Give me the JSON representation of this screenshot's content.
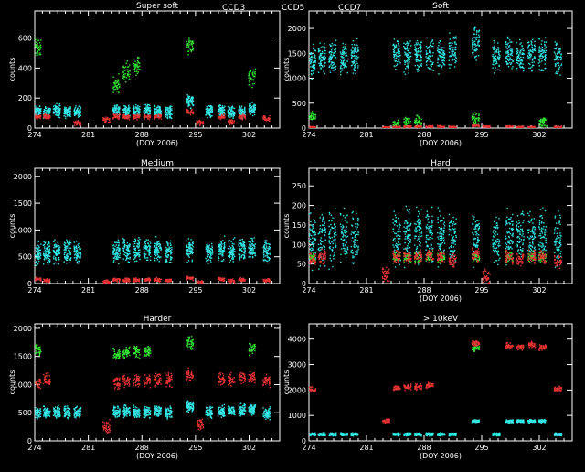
{
  "legend": [
    {
      "name": "CCD3",
      "color": "#33e6e6"
    },
    {
      "name": "CCD5",
      "color": "#33e633"
    },
    {
      "name": "CCD7",
      "color": "#e63333"
    }
  ],
  "chart_data": [
    {
      "type": "scatter",
      "title": "Super soft",
      "xlabel": "(DOY 2006)",
      "ylabel": "counts",
      "xlim": [
        274,
        306
      ],
      "ylim": [
        0,
        780
      ],
      "xticks": [
        274,
        281,
        288,
        295,
        302
      ],
      "yticks": [
        0,
        200,
        400,
        600
      ],
      "clusters": [
        274.3,
        275.5,
        276.8,
        278.2,
        279.5,
        283.3,
        284.6,
        285.9,
        287.2,
        288.6,
        290.0,
        291.4,
        292.7,
        294.2,
        295.5,
        296.7,
        298.3,
        299.6,
        301.0,
        302.3,
        304.2
      ],
      "series": [
        {
          "name": "CCD3",
          "color": "#33e6e6",
          "levels": [
            120,
            110,
            120,
            115,
            110,
            0,
            120,
            115,
            120,
            120,
            115,
            110,
            0,
            180,
            0,
            110,
            120,
            110,
            110,
            130,
            0
          ],
          "spread": 70
        },
        {
          "name": "CCD5",
          "color": "#33e633",
          "levels": [
            540,
            0,
            0,
            0,
            0,
            0,
            300,
            380,
            420,
            0,
            0,
            0,
            0,
            560,
            0,
            0,
            0,
            0,
            0,
            340,
            0
          ],
          "spread": 110
        },
        {
          "name": "CCD7",
          "color": "#e63333",
          "levels": [
            80,
            80,
            0,
            0,
            40,
            60,
            80,
            80,
            80,
            80,
            80,
            0,
            0,
            110,
            40,
            0,
            80,
            40,
            80,
            0,
            70
          ],
          "spread": 30
        }
      ]
    },
    {
      "type": "scatter",
      "title": "Soft",
      "xlabel": "(DOY 2006)",
      "ylabel": "counts",
      "xlim": [
        274,
        306
      ],
      "ylim": [
        0,
        2350
      ],
      "xticks": [
        274,
        281,
        288,
        295,
        302
      ],
      "yticks": [
        0,
        500,
        1000,
        1500,
        2000
      ],
      "clusters": [
        274.3,
        275.5,
        276.8,
        278.2,
        279.5,
        283.3,
        284.6,
        285.9,
        287.2,
        288.6,
        290.0,
        291.4,
        292.7,
        294.2,
        295.5,
        296.7,
        298.3,
        299.6,
        301.0,
        302.3,
        304.2
      ],
      "series": [
        {
          "name": "CCD3",
          "color": "#33e6e6",
          "levels": [
            1350,
            1400,
            1450,
            1400,
            1450,
            0,
            1500,
            1450,
            1450,
            1500,
            1450,
            1550,
            0,
            1750,
            0,
            1450,
            1500,
            1450,
            1500,
            1500,
            1400
          ],
          "spread": 550
        },
        {
          "name": "CCD5",
          "color": "#33e633",
          "levels": [
            250,
            0,
            0,
            0,
            0,
            0,
            100,
            120,
            150,
            0,
            0,
            0,
            0,
            200,
            0,
            0,
            0,
            0,
            0,
            120,
            0
          ],
          "spread": 200
        },
        {
          "name": "CCD7",
          "color": "#e63333",
          "levels": [
            30,
            0,
            0,
            0,
            0,
            20,
            30,
            40,
            40,
            40,
            40,
            30,
            0,
            60,
            40,
            0,
            40,
            30,
            30,
            0,
            30
          ],
          "spread": 40
        }
      ]
    },
    {
      "type": "scatter",
      "title": "Medium",
      "xlabel": "",
      "ylabel": "counts",
      "xlim": [
        274,
        306
      ],
      "ylim": [
        0,
        2150
      ],
      "xticks": [
        274,
        281,
        288,
        295,
        302
      ],
      "yticks": [
        0,
        500,
        1000,
        1500,
        2000
      ],
      "clusters": [
        274.3,
        275.5,
        276.8,
        278.2,
        279.5,
        283.3,
        284.6,
        285.9,
        287.2,
        288.6,
        290.0,
        291.4,
        292.7,
        294.2,
        295.5,
        296.7,
        298.3,
        299.6,
        301.0,
        302.3,
        304.2
      ],
      "series": [
        {
          "name": "CCD3",
          "color": "#33e6e6",
          "levels": [
            550,
            580,
            600,
            620,
            600,
            0,
            620,
            650,
            640,
            630,
            650,
            600,
            0,
            650,
            0,
            600,
            650,
            620,
            650,
            650,
            620
          ],
          "spread": 360
        },
        {
          "name": "CCD5",
          "color": "#33e633",
          "levels": [
            0,
            0,
            0,
            0,
            0,
            0,
            0,
            0,
            0,
            0,
            0,
            0,
            0,
            0,
            0,
            0,
            0,
            0,
            0,
            0,
            0
          ],
          "spread": 0
        },
        {
          "name": "CCD7",
          "color": "#e63333",
          "levels": [
            100,
            70,
            0,
            0,
            0,
            40,
            80,
            80,
            80,
            80,
            80,
            70,
            0,
            110,
            40,
            0,
            90,
            60,
            80,
            0,
            70
          ],
          "spread": 60
        }
      ]
    },
    {
      "type": "scatter",
      "title": "Hard",
      "xlabel": "(DOY 2006)",
      "ylabel": "counts",
      "xlim": [
        274,
        306
      ],
      "ylim": [
        0,
        295
      ],
      "xticks": [
        274,
        281,
        288,
        295,
        302
      ],
      "yticks": [
        0,
        50,
        100,
        150,
        200,
        250
      ],
      "clusters": [
        274.3,
        275.5,
        276.8,
        278.2,
        279.5,
        283.3,
        284.6,
        285.9,
        287.2,
        288.6,
        290.0,
        291.4,
        292.7,
        294.2,
        295.5,
        296.7,
        298.3,
        299.6,
        301.0,
        302.3,
        304.2
      ],
      "series": [
        {
          "name": "CCD3",
          "color": "#33e6e6",
          "levels": [
            110,
            115,
            120,
            120,
            115,
            0,
            120,
            125,
            125,
            125,
            120,
            115,
            0,
            120,
            0,
            115,
            120,
            120,
            120,
            120,
            115
          ],
          "spread": 120
        },
        {
          "name": "CCD5",
          "color": "#33e633",
          "levels": [
            70,
            0,
            0,
            0,
            0,
            0,
            70,
            70,
            70,
            70,
            70,
            0,
            0,
            70,
            0,
            0,
            70,
            0,
            70,
            70,
            0
          ],
          "spread": 25
        },
        {
          "name": "CCD7",
          "color": "#e63333",
          "levels": [
            65,
            70,
            0,
            0,
            0,
            25,
            70,
            70,
            70,
            70,
            70,
            60,
            0,
            75,
            20,
            0,
            70,
            65,
            70,
            70,
            60
          ],
          "spread": 30
        }
      ]
    },
    {
      "type": "scatter",
      "title": "Harder",
      "xlabel": "(DOY 2006)",
      "ylabel": "counts",
      "xlim": [
        274,
        306
      ],
      "ylim": [
        0,
        2080
      ],
      "xticks": [
        274,
        281,
        288,
        295,
        302
      ],
      "yticks": [
        0,
        500,
        1000,
        1500,
        2000
      ],
      "clusters": [
        274.3,
        275.5,
        276.8,
        278.2,
        279.5,
        283.3,
        284.6,
        285.9,
        287.2,
        288.6,
        290.0,
        291.4,
        292.7,
        294.2,
        295.5,
        296.7,
        298.3,
        299.6,
        301.0,
        302.3,
        304.2
      ],
      "series": [
        {
          "name": "CCD3",
          "color": "#33e6e6",
          "levels": [
            500,
            520,
            520,
            520,
            520,
            0,
            520,
            540,
            520,
            520,
            540,
            520,
            0,
            620,
            0,
            520,
            540,
            540,
            560,
            580,
            500
          ],
          "spread": 180
        },
        {
          "name": "CCD5",
          "color": "#33e633",
          "levels": [
            1620,
            0,
            0,
            0,
            0,
            0,
            1550,
            1580,
            1600,
            1600,
            0,
            0,
            0,
            1750,
            0,
            0,
            0,
            0,
            0,
            1650,
            0
          ],
          "spread": 180
        },
        {
          "name": "CCD7",
          "color": "#e63333",
          "levels": [
            1050,
            1100,
            0,
            0,
            0,
            260,
            1050,
            1080,
            1080,
            1080,
            1100,
            1100,
            0,
            1180,
            300,
            0,
            1120,
            1100,
            1150,
            1150,
            1080
          ],
          "spread": 200
        }
      ]
    },
    {
      "type": "scatter",
      "title": "> 10keV",
      "xlabel": "(DOY 2006)",
      "ylabel": "counts",
      "xlim": [
        274,
        306
      ],
      "ylim": [
        0,
        4600
      ],
      "xticks": [
        274,
        281,
        288,
        295,
        302
      ],
      "yticks": [
        0,
        1000,
        2000,
        3000,
        4000
      ],
      "clusters": [
        274.3,
        275.5,
        276.8,
        278.2,
        279.5,
        283.3,
        284.6,
        285.9,
        287.2,
        288.6,
        290.0,
        291.4,
        292.7,
        294.2,
        295.5,
        296.7,
        298.3,
        299.6,
        301.0,
        302.3,
        304.2
      ],
      "series": [
        {
          "name": "CCD3",
          "color": "#33e6e6",
          "levels": [
            280,
            280,
            280,
            280,
            280,
            0,
            280,
            280,
            280,
            280,
            280,
            280,
            0,
            800,
            0,
            280,
            800,
            800,
            800,
            800,
            280
          ],
          "spread": 100
        },
        {
          "name": "CCD5",
          "color": "#33e633",
          "levels": [
            0,
            0,
            0,
            0,
            0,
            0,
            0,
            0,
            0,
            0,
            0,
            0,
            0,
            3700,
            0,
            0,
            0,
            0,
            0,
            0,
            0
          ],
          "spread": 300
        },
        {
          "name": "CCD7",
          "color": "#e63333",
          "levels": [
            2050,
            0,
            0,
            0,
            0,
            800,
            2100,
            2150,
            2150,
            2200,
            0,
            0,
            0,
            3850,
            0,
            0,
            3750,
            3700,
            3800,
            3700,
            2050
          ],
          "spread": 200
        }
      ]
    }
  ]
}
